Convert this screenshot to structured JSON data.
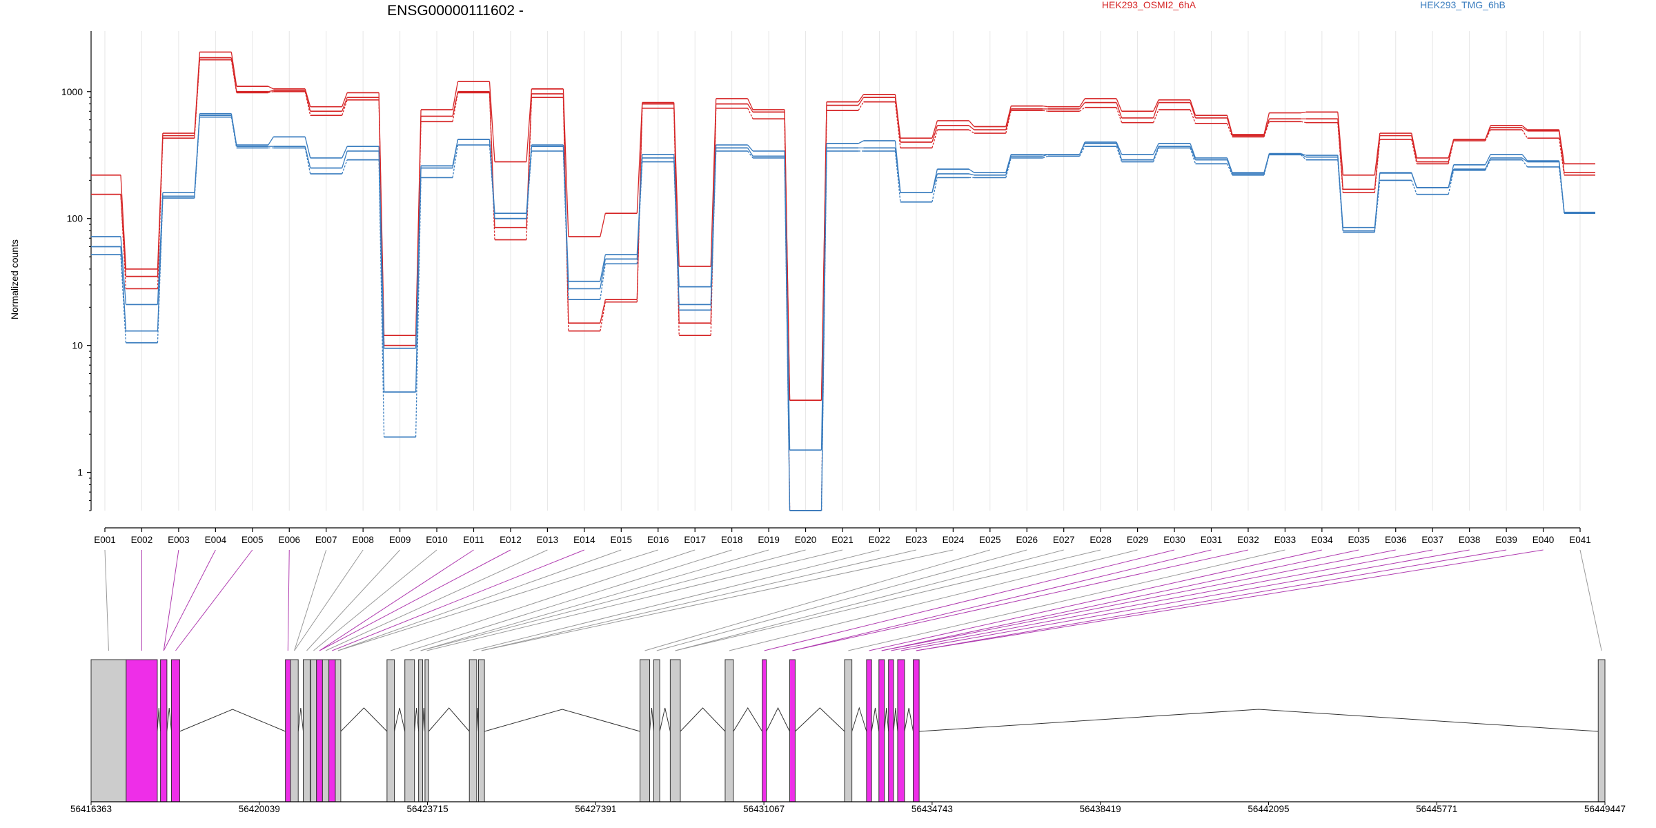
{
  "chart_data": {
    "type": "line",
    "title": "ENSG00000111602 -",
    "ylabel": "Normalized counts",
    "yscale": "log",
    "ylim": [
      0.5,
      3000
    ],
    "yticks": [
      1,
      10,
      100,
      1000
    ],
    "exons": [
      "E001",
      "E002",
      "E003",
      "E004",
      "E005",
      "E006",
      "E007",
      "E008",
      "E009",
      "E010",
      "E011",
      "E012",
      "E013",
      "E014",
      "E015",
      "E016",
      "E017",
      "E018",
      "E019",
      "E020",
      "E021",
      "E022",
      "E023",
      "E024",
      "E025",
      "E026",
      "E027",
      "E028",
      "E029",
      "E030",
      "E031",
      "E032",
      "E033",
      "E034",
      "E035",
      "E036",
      "E037",
      "E038",
      "E039",
      "E040",
      "E041"
    ],
    "groups": [
      {
        "name": "HEK293_OSMI2_6hA",
        "color": "#d62728"
      },
      {
        "name": "HEK293_TMG_6hB",
        "color": "#3a7dbf"
      }
    ],
    "series": [
      {
        "group": 0,
        "style": "solid",
        "values": [
          220,
          40,
          470,
          2050,
          1100,
          1050,
          760,
          980,
          12,
          720,
          1200,
          280,
          1050,
          72,
          110,
          820,
          42,
          880,
          720,
          3.7,
          830,
          950,
          430,
          590,
          530,
          770,
          760,
          880,
          700,
          860,
          650,
          460,
          680,
          690,
          220,
          470,
          300,
          420,
          540,
          500,
          270
        ]
      },
      {
        "group": 0,
        "style": "solid",
        "values": [
          155,
          35,
          450,
          1850,
          1000,
          1020,
          700,
          900,
          10,
          640,
          1000,
          85,
          960,
          15,
          23,
          800,
          15,
          800,
          690,
          3.7,
          780,
          900,
          400,
          540,
          500,
          730,
          730,
          820,
          620,
          820,
          620,
          450,
          610,
          610,
          170,
          450,
          280,
          420,
          520,
          490,
          230
        ]
      },
      {
        "group": 0,
        "style": "dashed",
        "values": [
          155,
          28,
          430,
          1780,
          980,
          1000,
          650,
          860,
          10,
          580,
          980,
          68,
          900,
          13,
          22,
          740,
          12,
          740,
          610,
          0.5,
          710,
          830,
          360,
          500,
          470,
          710,
          700,
          750,
          570,
          720,
          560,
          440,
          580,
          570,
          160,
          420,
          270,
          410,
          500,
          430,
          220
        ]
      },
      {
        "group": 1,
        "style": "solid",
        "values": [
          72,
          21,
          160,
          670,
          380,
          440,
          300,
          370,
          9.5,
          260,
          420,
          110,
          380,
          32,
          52,
          320,
          29,
          380,
          340,
          1.5,
          390,
          410,
          160,
          245,
          230,
          320,
          320,
          400,
          320,
          390,
          300,
          230,
          325,
          315,
          85,
          230,
          175,
          265,
          320,
          285,
          112
        ]
      },
      {
        "group": 1,
        "style": "solid",
        "values": [
          60,
          13,
          150,
          650,
          370,
          370,
          250,
          340,
          4.3,
          250,
          420,
          100,
          370,
          28,
          48,
          300,
          21,
          360,
          310,
          0.5,
          360,
          360,
          160,
          225,
          220,
          310,
          320,
          390,
          290,
          370,
          290,
          225,
          322,
          305,
          80,
          228,
          175,
          245,
          300,
          280,
          110
        ]
      },
      {
        "group": 1,
        "style": "dashed",
        "values": [
          52,
          10.5,
          145,
          630,
          360,
          360,
          225,
          290,
          1.9,
          210,
          380,
          100,
          340,
          23,
          44,
          280,
          19,
          340,
          300,
          0.5,
          340,
          340,
          135,
          210,
          210,
          300,
          310,
          370,
          280,
          360,
          270,
          220,
          318,
          290,
          78,
          200,
          155,
          240,
          290,
          255,
          110
        ]
      }
    ],
    "genomic_axis": {
      "ticks": [
        56416363,
        56420039,
        56423715,
        56427391,
        56431067,
        56434743,
        56438419,
        56442095,
        56445771,
        56449447
      ],
      "range": [
        56416363,
        56449447
      ]
    },
    "exon_model": [
      {
        "start": 56416363,
        "end": 56417130,
        "highlight": false
      },
      {
        "start": 56417130,
        "end": 56417810,
        "highlight": true
      },
      {
        "start": 56417880,
        "end": 56418020,
        "highlight": true
      },
      {
        "start": 56418120,
        "end": 56418300,
        "highlight": true
      },
      {
        "start": 56420610,
        "end": 56420720,
        "highlight": true
      },
      {
        "start": 56420720,
        "end": 56420890,
        "highlight": false
      },
      {
        "start": 56421000,
        "end": 56421150,
        "highlight": false
      },
      {
        "start": 56421160,
        "end": 56421290,
        "highlight": false
      },
      {
        "start": 56421290,
        "end": 56421420,
        "highlight": true
      },
      {
        "start": 56421420,
        "end": 56421560,
        "highlight": false
      },
      {
        "start": 56421560,
        "end": 56421700,
        "highlight": true
      },
      {
        "start": 56421700,
        "end": 56421820,
        "highlight": false
      },
      {
        "start": 56422830,
        "end": 56422990,
        "highlight": false
      },
      {
        "start": 56423220,
        "end": 56423430,
        "highlight": false
      },
      {
        "start": 56423520,
        "end": 56423610,
        "highlight": false
      },
      {
        "start": 56423660,
        "end": 56423740,
        "highlight": false
      },
      {
        "start": 56424630,
        "end": 56424790,
        "highlight": false
      },
      {
        "start": 56424830,
        "end": 56424960,
        "highlight": false
      },
      {
        "start": 56428360,
        "end": 56428570,
        "highlight": false
      },
      {
        "start": 56428660,
        "end": 56428790,
        "highlight": false
      },
      {
        "start": 56429020,
        "end": 56429240,
        "highlight": false
      },
      {
        "start": 56430220,
        "end": 56430400,
        "highlight": false
      },
      {
        "start": 56431030,
        "end": 56431120,
        "highlight": true
      },
      {
        "start": 56431630,
        "end": 56431750,
        "highlight": true
      },
      {
        "start": 56432830,
        "end": 56432990,
        "highlight": false
      },
      {
        "start": 56433310,
        "end": 56433420,
        "highlight": true
      },
      {
        "start": 56433580,
        "end": 56433700,
        "highlight": true
      },
      {
        "start": 56433790,
        "end": 56433900,
        "highlight": true
      },
      {
        "start": 56433990,
        "end": 56434140,
        "highlight": true
      },
      {
        "start": 56434330,
        "end": 56434460,
        "highlight": true
      },
      {
        "start": 56449300,
        "end": 56449447,
        "highlight": false
      }
    ]
  }
}
